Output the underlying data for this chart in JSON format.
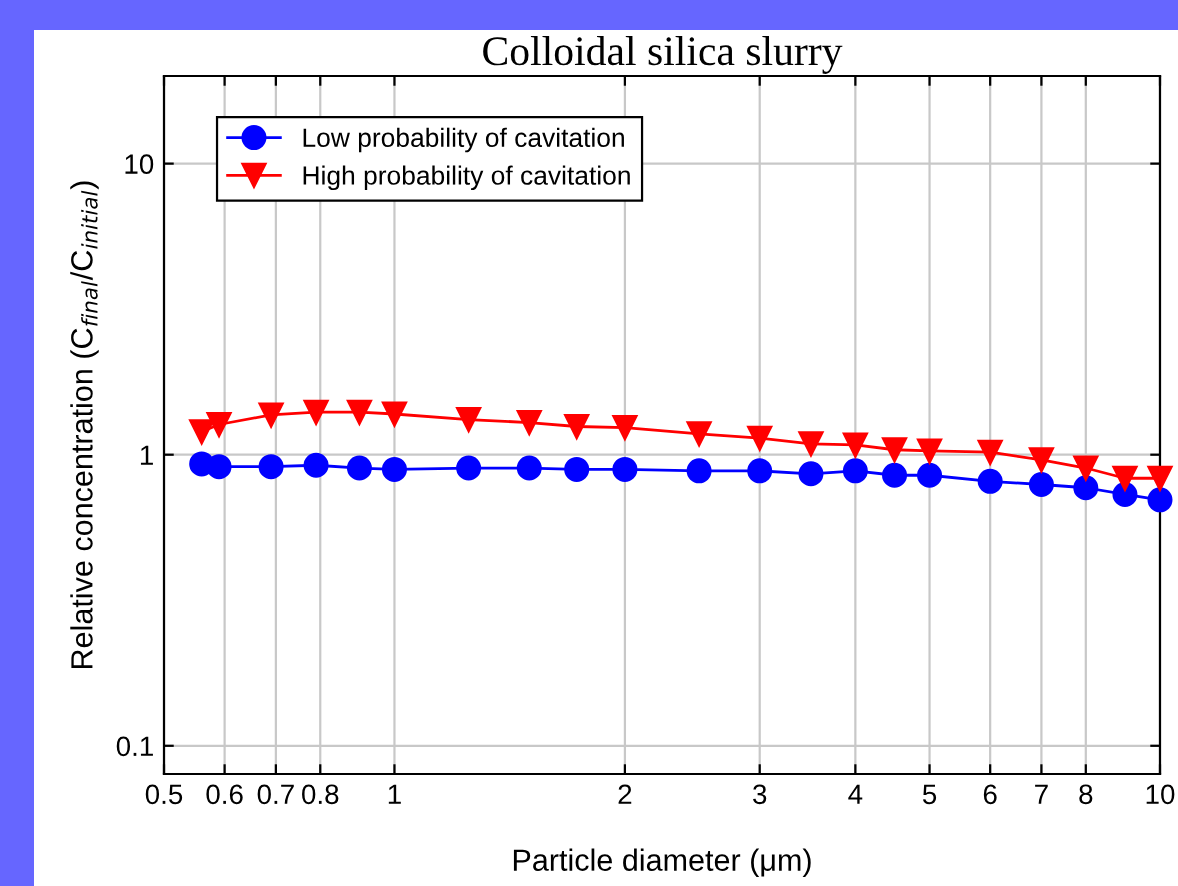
{
  "chart_data": {
    "type": "line",
    "title": "Colloidal silica slurry",
    "xlabel": "Particle diameter (μm)",
    "ylabel": "Relative concentration (C$_{final}$/C$_{initial}$)",
    "log": "xy",
    "xlim": [
      0.5,
      10
    ],
    "ylim": [
      0.08,
      20
    ],
    "xticks": [
      0.5,
      0.6,
      0.7,
      0.8,
      1,
      2,
      3,
      4,
      5,
      6,
      7,
      8,
      10
    ],
    "yticks": [
      0.1,
      1,
      10
    ],
    "grid": true,
    "legend": "top left",
    "x": [
      0.56,
      0.59,
      0.69,
      0.79,
      0.9,
      1.0,
      1.25,
      1.5,
      1.73,
      2.0,
      2.5,
      3.0,
      3.5,
      4.0,
      4.5,
      5.0,
      6.0,
      7.0,
      8.0,
      9.0,
      10.0
    ],
    "series": [
      {
        "name": "Low probability of cavitation",
        "color": "#0000ff",
        "marker": "circle",
        "values": [
          0.93,
          0.91,
          0.91,
          0.92,
          0.9,
          0.89,
          0.9,
          0.9,
          0.89,
          0.89,
          0.88,
          0.88,
          0.86,
          0.88,
          0.85,
          0.85,
          0.81,
          0.79,
          0.77,
          0.73,
          0.7
        ]
      },
      {
        "name": "High probability of cavitation",
        "color": "#ff0000",
        "marker": "triangle",
        "values": [
          1.2,
          1.27,
          1.37,
          1.4,
          1.4,
          1.38,
          1.32,
          1.29,
          1.25,
          1.24,
          1.18,
          1.14,
          1.09,
          1.08,
          1.04,
          1.03,
          1.02,
          0.96,
          0.9,
          0.83,
          0.83
        ]
      }
    ]
  }
}
